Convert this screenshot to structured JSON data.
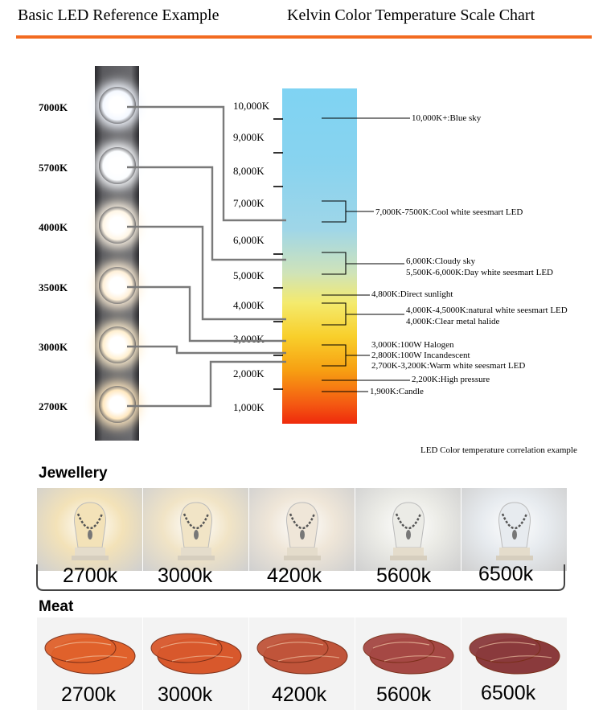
{
  "header": {
    "left_title": "Basic LED Reference Example",
    "right_title": "Kelvin Color Temperature Scale Chart",
    "rule_color": "#f26b21"
  },
  "led_reference": {
    "leds": [
      {
        "label": "7000K",
        "color": "#f4f8ff"
      },
      {
        "label": "5700K",
        "color": "#fbfdff"
      },
      {
        "label": "4000K",
        "color": "#fff6e6"
      },
      {
        "label": "3500K",
        "color": "#fff0d8"
      },
      {
        "label": "3000K",
        "color": "#ffefcf"
      },
      {
        "label": "2700K",
        "color": "#ffe8c0"
      }
    ]
  },
  "kelvin_scale": {
    "ticks": [
      "10,000K",
      "9,000K",
      "8,000K",
      "7,000K",
      "6,000K",
      "5,000K",
      "4,000K",
      "3,000K",
      "2,000K",
      "1,000K"
    ],
    "annotations": [
      {
        "text": "10,000K+:Blue sky"
      },
      {
        "text": "7,000K-7500K:Cool white seesmart LED"
      },
      {
        "text": "6,000K:Cloudy sky"
      },
      {
        "text": "5,500K-6,000K:Day white seesmart LED"
      },
      {
        "text": "4,800K:Direct sunlight"
      },
      {
        "text": "4,000K-4,5000K:natural white seesmart LED"
      },
      {
        "text": "4,000K:Clear metal halide"
      },
      {
        "text": "3,000K:100W Halogen"
      },
      {
        "text": "2,800K:100W Incandescent"
      },
      {
        "text": "2,700K-3,200K:Warm white seesmart LED"
      },
      {
        "text": "2,200K:High pressure"
      },
      {
        "text": "1,900K:Candle"
      }
    ],
    "caption": "LED Color temperature correlation example"
  },
  "jewellery": {
    "title": "Jewellery",
    "panels": [
      {
        "label": "2700k",
        "tint": "#f3e2b8"
      },
      {
        "label": "3000k",
        "tint": "#f1e4c6"
      },
      {
        "label": "4200k",
        "tint": "#efe6d8"
      },
      {
        "label": "5600k",
        "tint": "#ebebe6"
      },
      {
        "label": "6500k",
        "tint": "#e7ebef"
      }
    ]
  },
  "meat": {
    "title": "Meat",
    "panels": [
      {
        "label": "2700k",
        "meat_color": "#e0612b"
      },
      {
        "label": "3000k",
        "meat_color": "#d8582c"
      },
      {
        "label": "4200k",
        "meat_color": "#c0543a"
      },
      {
        "label": "5600k",
        "meat_color": "#a54844"
      },
      {
        "label": "6500k",
        "meat_color": "#8a3a3c"
      }
    ]
  }
}
